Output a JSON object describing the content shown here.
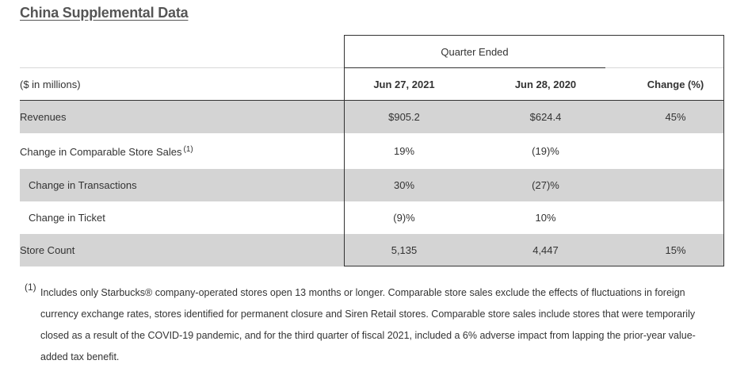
{
  "title": "China Supplemental Data",
  "period_header": "Quarter Ended",
  "columns": {
    "label": "($ in millions)",
    "current": "Jun 27, 2021",
    "prior": "Jun 28, 2020",
    "change": "Change (%)"
  },
  "rows": [
    {
      "label": "Revenues",
      "current": "$905.2",
      "prior": "$624.4",
      "change": "45%"
    },
    {
      "label": "Change in Comparable Store Sales",
      "footnote_ref": "(1)",
      "current": "19%",
      "prior": "(19)%",
      "change": ""
    },
    {
      "label": "Change in Transactions",
      "current": "30%",
      "prior": "(27)%",
      "change": ""
    },
    {
      "label": "Change in Ticket",
      "current": "(9)%",
      "prior": "10%",
      "change": ""
    },
    {
      "label": "Store Count",
      "current": "5,135",
      "prior": "4,447",
      "change": "15%"
    }
  ],
  "footnote": {
    "marker": "(1)",
    "text": "Includes only Starbucks® company-operated stores open 13 months or longer. Comparable store sales exclude the effects of fluctuations in foreign currency exchange rates, stores identified for permanent closure and Siren Retail stores. Comparable store sales include stores that were temporarily closed as a result of the COVID-19 pandemic, and for the third quarter of fiscal 2021, included a 6% adverse impact from lapping the prior-year value-added tax benefit."
  }
}
